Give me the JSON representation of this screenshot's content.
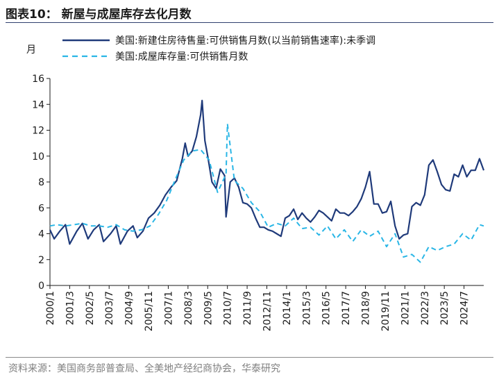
{
  "header": {
    "title": "图表10：  新屋与成屋库存去化月数"
  },
  "footer": {
    "source": "资料来源：美国商务部普查局、全美地产经纪商协会，华泰研究"
  },
  "chart_data": {
    "type": "line",
    "title": "图表10：  新屋与成屋库存去化月数",
    "ylabel": "月",
    "xlabel": "",
    "ylim": [
      0,
      16
    ],
    "yticks": [
      0,
      2,
      4,
      6,
      8,
      10,
      12,
      14,
      16
    ],
    "xlim": [
      "2000-01",
      "2025-09"
    ],
    "xticks": [
      "2000/1",
      "2001/3",
      "2002/5",
      "2003/7",
      "2004/9",
      "2005/11",
      "2007/1",
      "2008/3",
      "2009/5",
      "2010/7",
      "2011/9",
      "2012/11",
      "2014/1",
      "2015/3",
      "2016/5",
      "2017/7",
      "2018/9",
      "2019/11",
      "2021/1",
      "2022/3",
      "2023/5",
      "2024/7"
    ],
    "grid": false,
    "legend_position": "top",
    "series": [
      {
        "name": "美国:新建住房待售量:可供销售月数(以当前销售速率):未季调",
        "color": "#1f3a7a",
        "style": "solid",
        "points": [
          [
            "2000-01",
            4.3
          ],
          [
            "2000-04",
            3.6
          ],
          [
            "2000-08",
            4.2
          ],
          [
            "2000-12",
            4.7
          ],
          [
            "2001-03",
            3.2
          ],
          [
            "2001-08",
            4.2
          ],
          [
            "2001-12",
            4.8
          ],
          [
            "2002-04",
            3.6
          ],
          [
            "2002-08",
            4.3
          ],
          [
            "2002-12",
            4.7
          ],
          [
            "2003-03",
            3.4
          ],
          [
            "2003-08",
            4.0
          ],
          [
            "2003-12",
            4.6
          ],
          [
            "2004-03",
            3.2
          ],
          [
            "2004-08",
            4.2
          ],
          [
            "2004-12",
            4.6
          ],
          [
            "2005-03",
            3.7
          ],
          [
            "2005-07",
            4.2
          ],
          [
            "2005-11",
            5.2
          ],
          [
            "2006-03",
            5.6
          ],
          [
            "2006-07",
            6.2
          ],
          [
            "2006-11",
            7.0
          ],
          [
            "2007-03",
            7.6
          ],
          [
            "2007-07",
            8.1
          ],
          [
            "2007-11",
            9.8
          ],
          [
            "2008-01",
            11.0
          ],
          [
            "2008-03",
            10.0
          ],
          [
            "2008-06",
            10.4
          ],
          [
            "2008-09",
            11.5
          ],
          [
            "2008-12",
            13.2
          ],
          [
            "2009-01",
            14.3
          ],
          [
            "2009-03",
            11.2
          ],
          [
            "2009-05",
            10.0
          ],
          [
            "2009-08",
            8.0
          ],
          [
            "2009-11",
            7.5
          ],
          [
            "2010-02",
            9.0
          ],
          [
            "2010-05",
            8.5
          ],
          [
            "2010-06",
            5.3
          ],
          [
            "2010-09",
            8.0
          ],
          [
            "2010-12",
            8.3
          ],
          [
            "2011-03",
            7.6
          ],
          [
            "2011-06",
            6.4
          ],
          [
            "2011-09",
            6.3
          ],
          [
            "2011-12",
            6.0
          ],
          [
            "2012-03",
            5.2
          ],
          [
            "2012-06",
            4.5
          ],
          [
            "2012-09",
            4.5
          ],
          [
            "2012-12",
            4.3
          ],
          [
            "2013-03",
            4.2
          ],
          [
            "2013-06",
            4.0
          ],
          [
            "2013-09",
            3.8
          ],
          [
            "2013-12",
            5.2
          ],
          [
            "2014-03",
            5.4
          ],
          [
            "2014-06",
            5.9
          ],
          [
            "2014-09",
            5.1
          ],
          [
            "2014-12",
            5.6
          ],
          [
            "2015-03",
            5.2
          ],
          [
            "2015-06",
            4.9
          ],
          [
            "2015-09",
            5.3
          ],
          [
            "2015-12",
            5.8
          ],
          [
            "2016-03",
            5.6
          ],
          [
            "2016-06",
            5.3
          ],
          [
            "2016-09",
            5.0
          ],
          [
            "2016-12",
            5.9
          ],
          [
            "2017-03",
            5.6
          ],
          [
            "2017-06",
            5.6
          ],
          [
            "2017-09",
            5.4
          ],
          [
            "2017-12",
            5.7
          ],
          [
            "2018-03",
            6.1
          ],
          [
            "2018-06",
            6.7
          ],
          [
            "2018-09",
            7.6
          ],
          [
            "2018-12",
            8.8
          ],
          [
            "2019-03",
            6.3
          ],
          [
            "2019-06",
            6.3
          ],
          [
            "2019-09",
            5.6
          ],
          [
            "2019-12",
            5.7
          ],
          [
            "2020-03",
            6.5
          ],
          [
            "2020-06",
            4.6
          ],
          [
            "2020-09",
            3.6
          ],
          [
            "2020-12",
            3.9
          ],
          [
            "2021-03",
            4.0
          ],
          [
            "2021-06",
            6.1
          ],
          [
            "2021-09",
            6.4
          ],
          [
            "2021-12",
            6.2
          ],
          [
            "2022-03",
            7.0
          ],
          [
            "2022-06",
            9.3
          ],
          [
            "2022-09",
            9.7
          ],
          [
            "2022-12",
            8.8
          ],
          [
            "2023-03",
            7.8
          ],
          [
            "2023-06",
            7.4
          ],
          [
            "2023-09",
            7.3
          ],
          [
            "2023-12",
            8.6
          ],
          [
            "2024-03",
            8.4
          ],
          [
            "2024-06",
            9.3
          ],
          [
            "2024-09",
            8.4
          ],
          [
            "2024-12",
            8.9
          ],
          [
            "2025-03",
            8.9
          ],
          [
            "2025-06",
            9.8
          ],
          [
            "2025-09",
            8.9
          ]
        ]
      },
      {
        "name": "美国:成屋库存量:可供销售月数",
        "color": "#29b6e6",
        "style": "dashed",
        "points": [
          [
            "2000-01",
            4.6
          ],
          [
            "2000-06",
            4.7
          ],
          [
            "2000-12",
            4.6
          ],
          [
            "2001-06",
            4.7
          ],
          [
            "2001-12",
            4.8
          ],
          [
            "2002-06",
            4.6
          ],
          [
            "2002-12",
            4.6
          ],
          [
            "2003-06",
            4.5
          ],
          [
            "2003-12",
            4.7
          ],
          [
            "2004-06",
            4.3
          ],
          [
            "2004-12",
            4.2
          ],
          [
            "2005-06",
            4.3
          ],
          [
            "2005-12",
            4.6
          ],
          [
            "2006-06",
            5.5
          ],
          [
            "2006-12",
            6.6
          ],
          [
            "2007-06",
            8.2
          ],
          [
            "2007-12",
            9.7
          ],
          [
            "2008-06",
            10.4
          ],
          [
            "2008-12",
            10.5
          ],
          [
            "2009-06",
            9.7
          ],
          [
            "2009-12",
            7.2
          ],
          [
            "2010-06",
            8.6
          ],
          [
            "2010-07",
            12.5
          ],
          [
            "2010-12",
            8.1
          ],
          [
            "2011-06",
            7.5
          ],
          [
            "2011-12",
            6.4
          ],
          [
            "2012-06",
            5.7
          ],
          [
            "2012-12",
            4.5
          ],
          [
            "2013-06",
            4.8
          ],
          [
            "2013-12",
            4.6
          ],
          [
            "2014-06",
            5.2
          ],
          [
            "2014-12",
            4.4
          ],
          [
            "2015-06",
            4.5
          ],
          [
            "2015-12",
            3.9
          ],
          [
            "2016-06",
            4.6
          ],
          [
            "2016-12",
            3.6
          ],
          [
            "2017-06",
            4.3
          ],
          [
            "2017-12",
            3.4
          ],
          [
            "2018-06",
            4.3
          ],
          [
            "2018-12",
            3.8
          ],
          [
            "2019-06",
            4.2
          ],
          [
            "2019-12",
            3.0
          ],
          [
            "2020-06",
            4.0
          ],
          [
            "2020-12",
            2.2
          ],
          [
            "2021-06",
            2.4
          ],
          [
            "2021-12",
            1.8
          ],
          [
            "2022-06",
            3.0
          ],
          [
            "2022-12",
            2.7
          ],
          [
            "2023-06",
            3.0
          ],
          [
            "2023-12",
            3.2
          ],
          [
            "2024-06",
            4.0
          ],
          [
            "2024-12",
            3.5
          ],
          [
            "2025-06",
            4.7
          ],
          [
            "2025-09",
            4.6
          ]
        ]
      }
    ]
  }
}
